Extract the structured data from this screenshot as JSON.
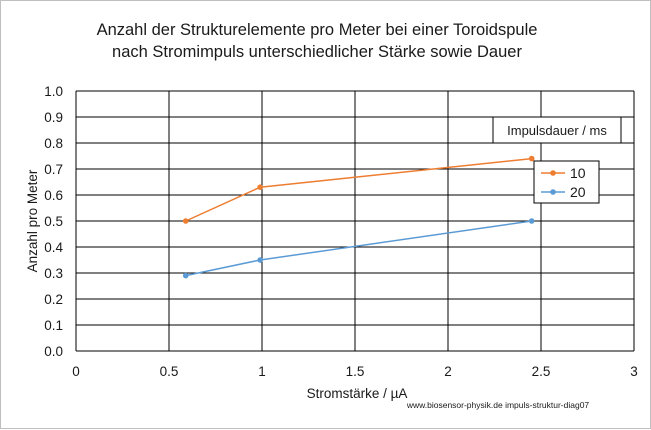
{
  "chart_data": {
    "type": "line",
    "title_line1": "Anzahl  der Strukturelemente pro Meter bei einer Toroidspule",
    "title_line2": "nach Stromimpuls unterschiedlicher Stärke sowie Dauer",
    "xlabel": "Stromstärke / µA",
    "ylabel": "Anzahl pro Meter",
    "xlim": [
      0,
      3
    ],
    "ylim": [
      0,
      1
    ],
    "x_ticks": [
      "0",
      "0.5",
      "1",
      "1.5",
      "2",
      "2.5",
      "3"
    ],
    "y_ticks": [
      "0.0",
      "0.1",
      "0.2",
      "0.3",
      "0.4",
      "0.5",
      "0.6",
      "0.7",
      "0.8",
      "0.9",
      "1.0"
    ],
    "grid": "horizontal and vertical",
    "legend_title": "Impulsdauer / ms",
    "legend_position": "right",
    "series": [
      {
        "name": "10",
        "color": "#ED7D31",
        "x": [
          0.59,
          0.99,
          2.45
        ],
        "y": [
          0.5,
          0.63,
          0.74
        ]
      },
      {
        "name": "20",
        "color": "#5B9BD5",
        "x": [
          0.59,
          0.99,
          2.45
        ],
        "y": [
          0.29,
          0.35,
          0.5
        ]
      }
    ],
    "credit": "www.biosensor-physik.de  impuls-struktur-diag07"
  }
}
